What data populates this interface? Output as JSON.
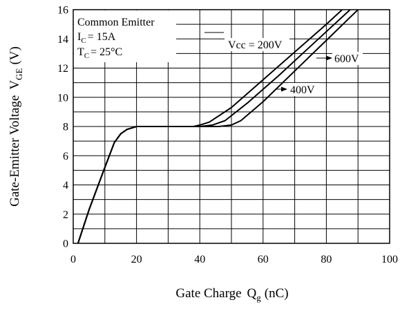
{
  "chart_data": {
    "type": "line",
    "xlabel": {
      "text": "Gate Charge",
      "symbol": "Q",
      "sub": "g",
      "unit": "(nC)"
    },
    "ylabel": {
      "text": "Gate-Emitter Voltage",
      "symbol": "V",
      "sub": "GE",
      "unit": "(V)"
    },
    "xlim": [
      0,
      100
    ],
    "ylim": [
      0,
      16
    ],
    "x_major_ticks": [
      0,
      20,
      40,
      60,
      80,
      100
    ],
    "y_major_ticks": [
      0,
      2,
      4,
      6,
      8,
      10,
      12,
      14,
      16
    ],
    "x_grid_step": 10,
    "y_grid_step": 1,
    "grid": true,
    "legend": {
      "line1": "Common Emitter",
      "line2": {
        "symbol": "I",
        "sub": "C",
        "rest": "= 15A"
      },
      "line3": {
        "symbol": "T",
        "sub": "C",
        "rest": "= 25°C"
      }
    },
    "series": [
      {
        "name": "Vcc = 200V",
        "x": [
          1.5,
          5,
          10,
          13,
          15,
          17,
          20,
          25,
          30,
          38,
          40,
          43,
          50,
          60,
          70,
          80,
          85
        ],
        "y": [
          0,
          2.3,
          5.2,
          6.9,
          7.5,
          7.8,
          8.0,
          8.0,
          8.0,
          8.0,
          8.1,
          8.3,
          9.3,
          11.2,
          13.1,
          15.0,
          16.0
        ]
      },
      {
        "name": "600V",
        "x": [
          1.5,
          5,
          10,
          13,
          15,
          17,
          20,
          25,
          30,
          40,
          44,
          48,
          55,
          65,
          75,
          85,
          87.5
        ],
        "y": [
          0,
          2.3,
          5.2,
          6.9,
          7.5,
          7.8,
          8.0,
          8.0,
          8.0,
          8.0,
          8.1,
          8.4,
          9.6,
          11.5,
          13.5,
          15.5,
          16.0
        ]
      },
      {
        "name": "400V",
        "x": [
          1.5,
          5,
          10,
          13,
          15,
          17,
          20,
          25,
          30,
          40,
          46,
          50,
          53,
          60,
          70,
          80,
          90
        ],
        "y": [
          0,
          2.3,
          5.2,
          6.9,
          7.5,
          7.8,
          8.0,
          8.0,
          8.0,
          8.0,
          8.0,
          8.1,
          8.4,
          9.7,
          11.8,
          13.9,
          16.0
        ]
      }
    ],
    "annotations": {
      "vcc_200": "Vcc = 200V",
      "vcc_600": "600V",
      "vcc_400": "400V"
    }
  }
}
